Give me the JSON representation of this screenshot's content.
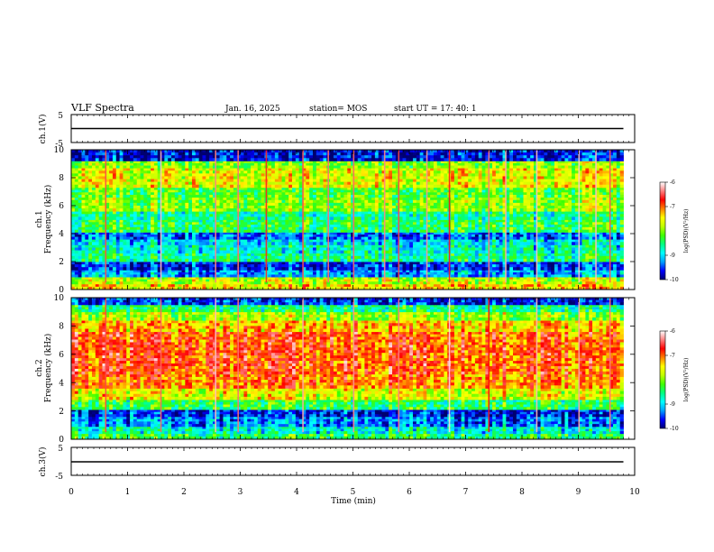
{
  "header": {
    "title": "VLF Spectra",
    "date": "Jan. 16, 2025",
    "station": "station= MOS",
    "start": "start UT = 17: 40: 1"
  },
  "axes": {
    "xlabel": "Time (min)",
    "ch1_wave_label": "ch.1(V)",
    "ch3_wave_label": "ch.3(V)",
    "ch1_spec_label_top": "ch.1",
    "ch1_spec_label_bottom": "Frequency (kHz)",
    "ch2_spec_label_top": "ch.2",
    "ch2_spec_label_bottom": "Frequency (kHz)",
    "colorbar_label": "log(PSD)(V²/Hz)"
  },
  "chart_data": [
    {
      "type": "line",
      "name": "ch1-waveform",
      "ylabel": "ch.1(V)",
      "xlim": [
        0,
        10
      ],
      "ylim": [
        -5,
        5
      ],
      "yticks": [
        -5,
        5
      ],
      "baseline": 0,
      "series": [
        {
          "x": [
            0,
            9.8
          ],
          "y": [
            0,
            0
          ]
        }
      ]
    },
    {
      "type": "heatmap",
      "name": "ch1-spectrogram",
      "ylabel": "Frequency (kHz)",
      "xlim": [
        0,
        10
      ],
      "ylim": [
        0,
        10
      ],
      "xticks": [
        0,
        1,
        2,
        3,
        4,
        5,
        6,
        7,
        8,
        9,
        10
      ],
      "yticks": [
        0,
        2,
        4,
        6,
        8,
        10
      ],
      "data_extent_min": 9.8,
      "bands": [
        {
          "f": [
            0,
            0.4
          ],
          "level": -7.4
        },
        {
          "f": [
            0.4,
            0.9
          ],
          "level": -7.8
        },
        {
          "f": [
            0.9,
            1.4
          ],
          "level": -9.2
        },
        {
          "f": [
            1.4,
            2.0
          ],
          "level": -9.6
        },
        {
          "f": [
            2.0,
            2.6
          ],
          "level": -8.6
        },
        {
          "f": [
            2.6,
            3.2
          ],
          "level": -8.8
        },
        {
          "f": [
            3.2,
            3.6
          ],
          "level": -9.0
        },
        {
          "f": [
            3.6,
            4.1
          ],
          "level": -9.4
        },
        {
          "f": [
            4.1,
            5.0
          ],
          "level": -8.4
        },
        {
          "f": [
            5.0,
            5.6
          ],
          "level": -8.6
        },
        {
          "f": [
            5.6,
            6.6
          ],
          "level": -8.0
        },
        {
          "f": [
            6.6,
            7.3
          ],
          "level": -8.2
        },
        {
          "f": [
            7.3,
            8.7
          ],
          "level": -7.6
        },
        {
          "f": [
            8.7,
            9.2
          ],
          "level": -8.0
        },
        {
          "f": [
            9.2,
            10.0
          ],
          "level": -9.7
        }
      ],
      "spikes_min": [
        0.6,
        1.58,
        2.55,
        2.95,
        3.45,
        4.1,
        4.55,
        5.0,
        5.55,
        5.8,
        6.3,
        6.7,
        7.4,
        7.7,
        8.25,
        9.0,
        9.3,
        9.55
      ]
    },
    {
      "type": "heatmap",
      "name": "ch2-spectrogram",
      "ylabel": "Frequency (kHz)",
      "xlim": [
        0,
        10
      ],
      "ylim": [
        0,
        10
      ],
      "xticks": [
        0,
        1,
        2,
        3,
        4,
        5,
        6,
        7,
        8,
        9,
        10
      ],
      "yticks": [
        0,
        2,
        4,
        6,
        8,
        10
      ],
      "data_extent_min": 9.8,
      "bands": [
        {
          "f": [
            0,
            0.4
          ],
          "level": -8.4
        },
        {
          "f": [
            0.4,
            0.9
          ],
          "level": -8.8
        },
        {
          "f": [
            0.9,
            1.6
          ],
          "level": -9.3
        },
        {
          "f": [
            1.6,
            2.1
          ],
          "level": -9.6
        },
        {
          "f": [
            2.1,
            2.8
          ],
          "level": -8.4
        },
        {
          "f": [
            2.8,
            3.6
          ],
          "level": -7.6
        },
        {
          "f": [
            3.6,
            4.6
          ],
          "level": -7.1
        },
        {
          "f": [
            4.6,
            7.6
          ],
          "level": -6.9
        },
        {
          "f": [
            7.6,
            8.4
          ],
          "level": -7.3
        },
        {
          "f": [
            8.4,
            9.0
          ],
          "level": -7.9
        },
        {
          "f": [
            9.0,
            9.5
          ],
          "level": -8.5
        },
        {
          "f": [
            9.5,
            10.0
          ],
          "level": -9.6
        }
      ],
      "spikes_min": [
        0.6,
        1.58,
        2.55,
        2.95,
        4.1,
        5.0,
        5.8,
        6.7,
        7.4,
        8.25,
        9.0,
        9.55
      ]
    },
    {
      "type": "line",
      "name": "ch3-waveform",
      "ylabel": "ch.3(V)",
      "xlim": [
        0,
        10
      ],
      "ylim": [
        -5,
        5
      ],
      "yticks": [
        -5,
        5
      ],
      "baseline": 0,
      "series": [
        {
          "x": [
            0,
            9.8
          ],
          "y": [
            0,
            0
          ]
        }
      ]
    }
  ],
  "colorbar": {
    "range": [
      -10,
      -6
    ],
    "ticks": [
      -10,
      -9,
      -7,
      -6
    ],
    "stops": [
      "#000070",
      "#0000ff",
      "#00a0ff",
      "#00ffff",
      "#00ff80",
      "#40ff00",
      "#c0ff00",
      "#ffff00",
      "#ff8000",
      "#ff0000",
      "#ff8080",
      "#ffffff"
    ]
  }
}
